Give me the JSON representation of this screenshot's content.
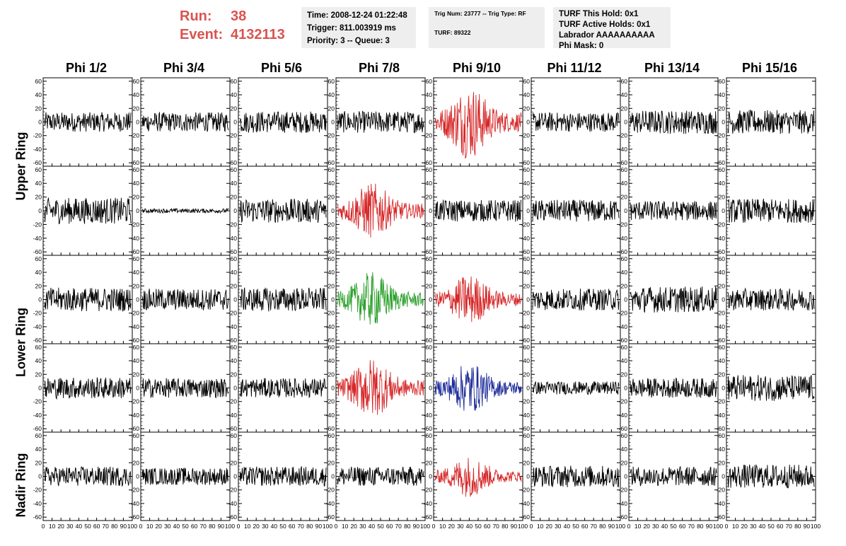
{
  "run": {
    "run_label": "Run:",
    "run_value": "38",
    "event_label": "Event:",
    "event_value": "4132113"
  },
  "info_boxes": {
    "time": [
      "Time: 2008-12-24 01:22:48",
      "Trigger: 811.003919 ms",
      "Priority: 3 -- Queue: 3"
    ],
    "trigger": [
      "Trig Num: 23777 -- Trig Type: RF",
      "TURF: 89322"
    ],
    "turf": [
      "TURF This Hold: 0x1",
      "TURF Active Holds: 0x1",
      "Labrador AAAAAAAAAA",
      "Phi Mask: 0"
    ]
  },
  "phi_labels": [
    "Phi 1/2",
    "Phi 3/4",
    "Phi 5/6",
    "Phi 7/8",
    "Phi 9/10",
    "Phi 11/12",
    "Phi 13/14",
    "Phi 15/16"
  ],
  "ring_labels": [
    "Upper Ring",
    "Lower Ring",
    "Nadir Ring"
  ],
  "chart_data": {
    "type": "line",
    "grid": "8 columns x 5 rows of waveform panels",
    "xlim": [
      0,
      100
    ],
    "ylim": [
      -65,
      65
    ],
    "x_ticks": [
      0,
      10,
      20,
      30,
      40,
      50,
      60,
      70,
      80,
      90,
      100
    ],
    "y_ticks": [
      -60,
      -40,
      -20,
      0,
      20,
      40,
      60
    ],
    "colors": {
      "default": "#000000",
      "red": "#d62728",
      "green": "#2ca02c",
      "blue": "#1f2d9a"
    },
    "panels": [
      [
        {
          "amp": 9,
          "color": "default"
        },
        {
          "amp": 9,
          "color": "default"
        },
        {
          "amp": 10,
          "color": "default"
        },
        {
          "amp": 10,
          "color": "default"
        },
        {
          "amp": 16,
          "color": "red",
          "burst": 40
        },
        {
          "amp": 9,
          "color": "default"
        },
        {
          "amp": 11,
          "color": "default"
        },
        {
          "amp": 11,
          "color": "default"
        }
      ],
      [
        {
          "amp": 12,
          "color": "default"
        },
        {
          "amp": 2,
          "color": "default"
        },
        {
          "amp": 11,
          "color": "default"
        },
        {
          "amp": 12,
          "color": "red",
          "burst": 40
        },
        {
          "amp": 10,
          "color": "default"
        },
        {
          "amp": 10,
          "color": "default"
        },
        {
          "amp": 9,
          "color": "default"
        },
        {
          "amp": 11,
          "color": "default"
        }
      ],
      [
        {
          "amp": 11,
          "color": "default"
        },
        {
          "amp": 10,
          "color": "default"
        },
        {
          "amp": 11,
          "color": "default"
        },
        {
          "amp": 12,
          "color": "green",
          "burst": 40
        },
        {
          "amp": 11,
          "color": "red",
          "burst": 40
        },
        {
          "amp": 10,
          "color": "default"
        },
        {
          "amp": 12,
          "color": "default"
        },
        {
          "amp": 10,
          "color": "default"
        }
      ],
      [
        {
          "amp": 10,
          "color": "default"
        },
        {
          "amp": 9,
          "color": "default"
        },
        {
          "amp": 9,
          "color": "default"
        },
        {
          "amp": 13,
          "color": "red",
          "burst": 40
        },
        {
          "amp": 11,
          "color": "blue",
          "burst": 40
        },
        {
          "amp": 6,
          "color": "default"
        },
        {
          "amp": 9,
          "color": "default"
        },
        {
          "amp": 12,
          "color": "default"
        }
      ],
      [
        {
          "amp": 9,
          "color": "default"
        },
        {
          "amp": 8,
          "color": "default"
        },
        {
          "amp": 9,
          "color": "default"
        },
        {
          "amp": 9,
          "color": "default"
        },
        {
          "amp": 9,
          "color": "red",
          "burst": 40
        },
        {
          "amp": 10,
          "color": "default"
        },
        {
          "amp": 9,
          "color": "default"
        },
        {
          "amp": 11,
          "color": "default"
        }
      ]
    ]
  }
}
